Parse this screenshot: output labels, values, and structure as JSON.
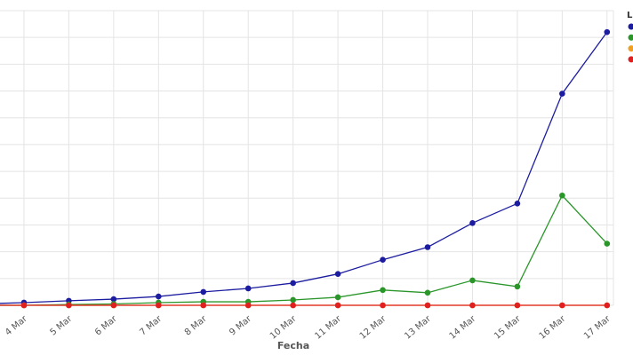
{
  "chart_data": {
    "type": "line",
    "x_label": "Fecha",
    "legend_title": "L",
    "categories": [
      null,
      "4 Mar",
      "5 Mar",
      "6 Mar",
      "7 Mar",
      "8 Mar",
      "9 Mar",
      "10 Mar",
      "11 Mar",
      "12 Mar",
      "13 Mar",
      "14 Mar",
      "15 Mar",
      "16 Mar",
      "17 Mar"
    ],
    "series": [
      {
        "color": "#1c1ca0",
        "values": [
          0.05,
          0.1,
          0.17,
          0.23,
          0.33,
          0.5,
          0.63,
          0.83,
          1.17,
          1.7,
          2.17,
          3.07,
          3.8,
          7.9,
          10.2
        ]
      },
      {
        "color": "#2a962a",
        "values": [
          0,
          0,
          0.03,
          0.05,
          0.1,
          0.13,
          0.13,
          0.2,
          0.3,
          0.57,
          0.47,
          0.93,
          0.7,
          4.1,
          2.3
        ]
      },
      {
        "color": "#f0a020",
        "values": [
          0,
          0,
          0,
          0,
          0,
          0,
          0,
          0,
          0,
          0,
          0,
          0,
          0,
          0,
          0
        ]
      },
      {
        "color": "#e02020",
        "values": [
          0,
          0,
          0,
          0,
          0,
          0,
          0,
          0,
          0,
          0,
          0,
          0,
          0,
          0,
          0
        ]
      }
    ],
    "ylim": [
      0,
      11
    ],
    "ygrid": [
      0,
      1,
      2,
      3,
      4,
      5,
      6,
      7,
      8,
      9,
      10,
      11
    ],
    "grid": true
  }
}
